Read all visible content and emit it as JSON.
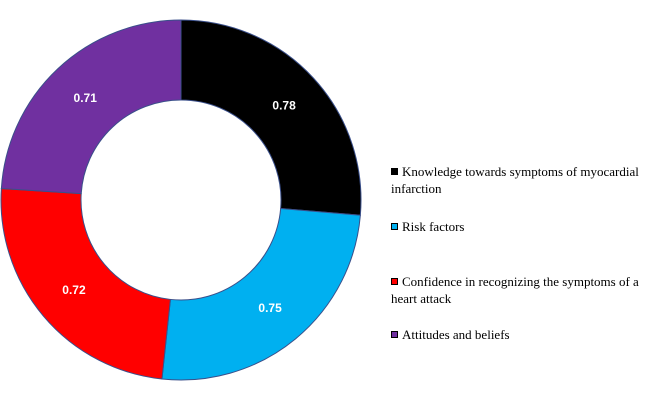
{
  "chart_data": {
    "type": "pie",
    "variant": "donut",
    "title": "",
    "categories": [
      "Knowledge towards symptoms of myocardial infarction",
      "Risk factors",
      "Confidence in recognizing the symptoms of a heart attack",
      "Attitudes and beliefs"
    ],
    "values": [
      0.78,
      0.75,
      0.72,
      0.71
    ],
    "value_labels": [
      "0.78",
      "0.75",
      "0.72",
      "0.71"
    ],
    "colors": [
      "#000000",
      "#00b0f0",
      "#ff0000",
      "#7030a0"
    ],
    "legend_position": "right"
  }
}
